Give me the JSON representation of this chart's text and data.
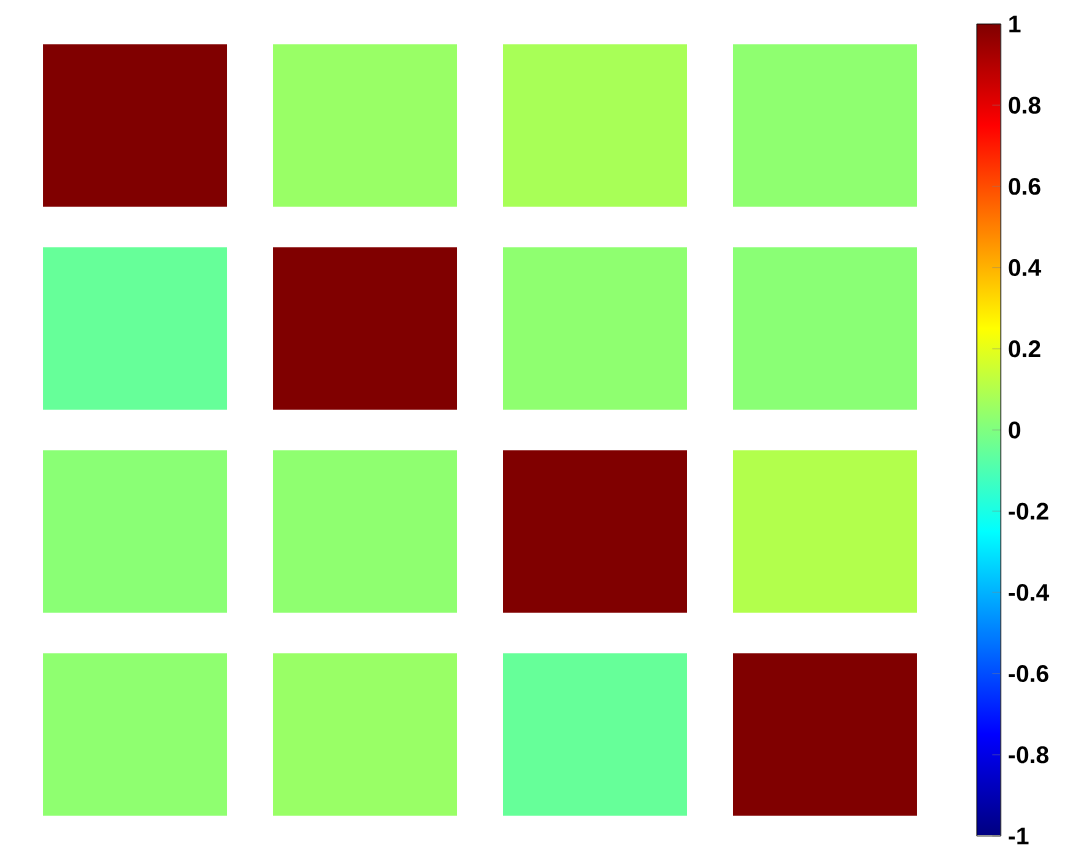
{
  "chart_data": {
    "type": "heatmap",
    "categories": [
      null,
      null,
      null,
      null
    ],
    "y_categories": [
      null,
      null,
      null,
      null
    ],
    "cells": [
      [
        1,
        0.05,
        0.08,
        0.03
      ],
      [
        -0.05,
        1,
        0.03,
        0.02
      ],
      [
        0.02,
        0.03,
        1,
        0.1
      ],
      [
        0.03,
        0.05,
        -0.05,
        1
      ]
    ],
    "clim": [
      -1,
      1
    ],
    "cticks": [
      -1,
      -0.8,
      -0.6,
      -0.4,
      -0.2,
      0,
      0.2,
      0.4,
      0.6,
      0.8,
      1
    ]
  }
}
